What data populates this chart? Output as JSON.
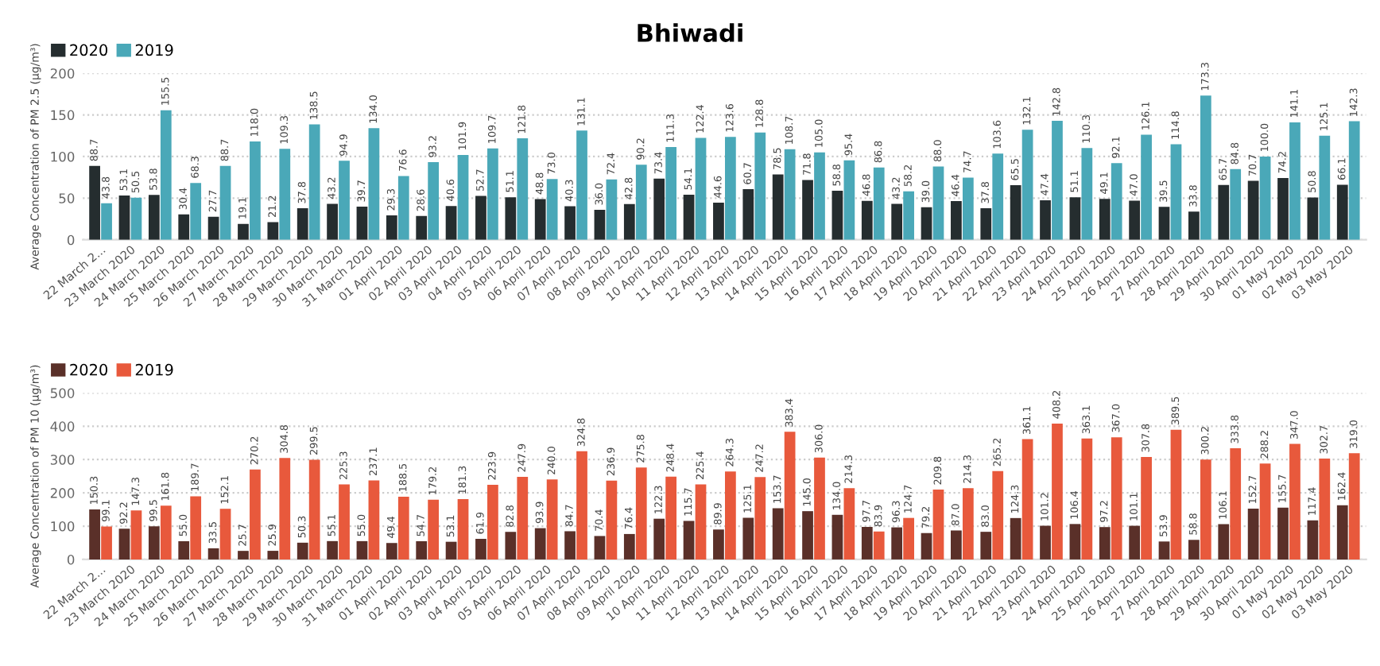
{
  "chart_data": [
    {
      "type": "bar",
      "title": "Bhiwadi",
      "ylabel": "Average Concentration of PM 2.5 (μg/m³)",
      "categories": [
        "22 March 2...",
        "23 March 2020",
        "24 March 2020",
        "25 March 2020",
        "26 March 2020",
        "27 March 2020",
        "28 March 2020",
        "29 March 2020",
        "30 March 2020",
        "31 March 2020",
        "01 April 2020",
        "02 April 2020",
        "03 April 2020",
        "04 April 2020",
        "05 April 2020",
        "06 April 2020",
        "07 April 2020",
        "08 April 2020",
        "09 April 2020",
        "10 April 2020",
        "11 April 2020",
        "12 April 2020",
        "13 April 2020",
        "14 April 2020",
        "15 April 2020",
        "16 April 2020",
        "17 April 2020",
        "18 April 2020",
        "19 April 2020",
        "20 April 2020",
        "21 April 2020",
        "22 April 2020",
        "23 April 2020",
        "24 April 2020",
        "25 April 2020",
        "26 April 2020",
        "27 April 2020",
        "28 April 2020",
        "29 April 2020",
        "30 April 2020",
        "01 May 2020",
        "02 May 2020",
        "03 May 2020"
      ],
      "series": [
        {
          "name": "2020",
          "color": "#252d2f",
          "values": [
            88.7,
            53.1,
            53.8,
            30.4,
            27.7,
            19.1,
            21.2,
            37.8,
            43.2,
            39.7,
            29.3,
            28.6,
            40.6,
            52.7,
            51.1,
            48.8,
            40.3,
            36.0,
            42.8,
            73.4,
            54.1,
            44.6,
            60.7,
            78.5,
            71.8,
            58.8,
            46.8,
            43.2,
            39.0,
            46.4,
            37.8,
            65.5,
            47.4,
            51.1,
            49.1,
            47.0,
            39.5,
            33.8,
            65.7,
            70.7,
            74.2,
            50.8,
            66.1
          ],
          "value_labels": [
            "88.7",
            "53.1",
            "53.8",
            "30.4",
            "27.7",
            "19.1",
            "21.2",
            "37.8",
            "43.2",
            "39.7",
            "29.3",
            "28.6",
            "40.6",
            "52.7",
            "51.1",
            "48.8",
            "40.3",
            "36.0",
            "42.8",
            "73.4",
            "54.1",
            "44.6",
            "60.7",
            "78.5",
            "71.8",
            "58.8",
            "46.8",
            "43.2",
            "39.0",
            "46.4",
            "37.8",
            "65.5",
            "47.4",
            "51.1",
            "49.1",
            "47.0",
            "39.5",
            "33.8",
            "65.7",
            "70.7",
            "74.2",
            "50.8",
            "66.1"
          ]
        },
        {
          "name": "2019",
          "color": "#4aa8b8",
          "values": [
            43.8,
            50.5,
            155.5,
            68.3,
            88.7,
            118.0,
            109.3,
            138.5,
            94.9,
            134.0,
            76.6,
            93.2,
            101.9,
            109.7,
            121.8,
            73.0,
            131.1,
            72.4,
            90.2,
            111.3,
            122.4,
            123.6,
            128.8,
            108.7,
            105.0,
            95.4,
            86.8,
            58.2,
            88.0,
            74.7,
            103.6,
            132.1,
            142.8,
            110.3,
            92.1,
            126.1,
            114.8,
            173.3,
            84.8,
            100.0,
            141.1,
            125.1,
            142.3
          ],
          "value_labels": [
            "43.8",
            "50.5",
            "155.5",
            "68.3",
            "88.7",
            "118.0",
            "109.3",
            "138.5",
            "94.9",
            "134.0",
            "76.6",
            "93.2",
            "101.9",
            "109.7",
            "121.8",
            "73.0",
            "131.1",
            "72.4",
            "90.2",
            "111.3",
            "122.4",
            "123.6",
            "128.8",
            "108.7",
            "105.0",
            "95.4",
            "86.8",
            "58.2",
            "88.0",
            "74.7",
            "103.6",
            "132.1",
            "142.8",
            "110.3",
            "92.1",
            "126.1",
            "114.8",
            "173.3",
            "84.8",
            "100.0",
            "141.1",
            "125.1",
            "142.3"
          ]
        }
      ],
      "ylim": [
        0,
        200
      ],
      "yticks": [
        0,
        50,
        100,
        150,
        200
      ],
      "grid": "y",
      "legend": "top left"
    },
    {
      "type": "bar",
      "ylabel": "Average Concentration of PM 10 (μg/m³)",
      "categories": [
        "22 March 2...",
        "23 March 2020",
        "24 March 2020",
        "25 March 2020",
        "26 March 2020",
        "27 March 2020",
        "28 March 2020",
        "29 March 2020",
        "30 March 2020",
        "31 March 2020",
        "01 April 2020",
        "02 April 2020",
        "03 April 2020",
        "04 April 2020",
        "05 April 2020",
        "06 April 2020",
        "07 April 2020",
        "08 April 2020",
        "09 April 2020",
        "10 April 2020",
        "11 April 2020",
        "12 April 2020",
        "13 April 2020",
        "14 April 2020",
        "15 April 2020",
        "16 April 2020",
        "17 April 2020",
        "18 April 2020",
        "19 April 2020",
        "20 April 2020",
        "21 April 2020",
        "22 April 2020",
        "23 April 2020",
        "24 April 2020",
        "25 April 2020",
        "26 April 2020",
        "27 April 2020",
        "28 April 2020",
        "29 April 2020",
        "30 April 2020",
        "01 May 2020",
        "02 May 2020",
        "03 May 2020"
      ],
      "series": [
        {
          "name": "2020",
          "color": "#5a3029",
          "values": [
            150.3,
            92.2,
            99.5,
            55.0,
            33.5,
            25.7,
            25.9,
            50.3,
            55.1,
            55.0,
            49.4,
            54.7,
            53.1,
            61.9,
            82.8,
            93.9,
            84.7,
            70.4,
            76.4,
            122.3,
            115.7,
            89.9,
            125.1,
            153.7,
            145.0,
            134.0,
            97.7,
            96.3,
            79.2,
            87.0,
            83.0,
            124.3,
            101.2,
            106.4,
            97.2,
            101.1,
            53.9,
            58.8,
            106.1,
            152.7,
            155.7,
            117.4,
            162.4
          ],
          "value_labels": [
            "150.3",
            "92.2",
            "99.5",
            "55.0",
            "33.5",
            "25.7",
            "25.9",
            "50.3",
            "55.1",
            "55.0",
            "49.4",
            "54.7",
            "53.1",
            "61.9",
            "82.8",
            "93.9",
            "84.7",
            "70.4",
            "76.4",
            "122.3",
            "115.7",
            "89.9",
            "125.1",
            "153.7",
            "145.0",
            "134.0",
            "97.7",
            "96.3",
            "79.2",
            "87.0",
            "83.0",
            "124.3",
            "101.2",
            "106.4",
            "97.2",
            "101.1",
            "53.9",
            "58.8",
            "106.1",
            "152.7",
            "155.7",
            "117.4",
            "162.4"
          ]
        },
        {
          "name": "2019",
          "color": "#e8593c",
          "values": [
            99.1,
            147.3,
            161.8,
            189.7,
            152.1,
            270.2,
            304.8,
            299.5,
            225.3,
            237.1,
            188.5,
            179.2,
            181.3,
            223.9,
            247.9,
            240.0,
            324.8,
            236.9,
            275.8,
            248.4,
            225.4,
            264.3,
            247.2,
            383.4,
            306.0,
            214.3,
            83.9,
            124.7,
            209.8,
            214.3,
            265.2,
            361.1,
            408.2,
            363.1,
            367.0,
            307.8,
            389.5,
            300.2,
            333.8,
            288.2,
            347.0,
            302.7,
            319.0
          ],
          "value_labels": [
            "99.1",
            "147.3",
            "161.8",
            "189.7",
            "152.1",
            "270.2",
            "304.8",
            "299.5",
            "225.3",
            "237.1",
            "188.5",
            "179.2",
            "181.3",
            "223.9",
            "247.9",
            "240.0",
            "324.8",
            "236.9",
            "275.8",
            "248.4",
            "225.4",
            "264.3",
            "247.2",
            "383.4",
            "306.0",
            "214.3",
            "83.9",
            "124.7",
            "209.8",
            "214.3",
            "265.2",
            "361.1",
            "408.2",
            "363.1",
            "367.0",
            "307.8",
            "389.5",
            "300.2",
            "333.8",
            "288.2",
            "347.0",
            "302.7",
            "319.0"
          ]
        }
      ],
      "ylim": [
        0,
        500
      ],
      "yticks": [
        0,
        100,
        200,
        300,
        400,
        500
      ],
      "grid": "y",
      "legend": "top left"
    }
  ]
}
